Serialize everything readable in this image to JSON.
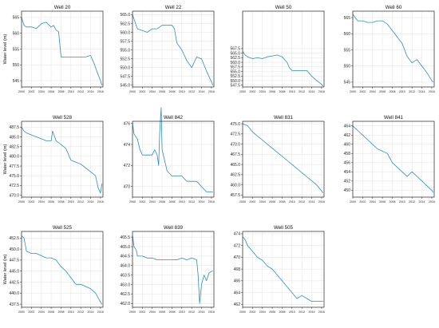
{
  "shared": {
    "x_tick_labels": [
      "2000",
      "2002",
      "2004",
      "2006",
      "2008",
      "2010",
      "2012",
      "2014",
      "2016"
    ],
    "ylabel": "Water level (m)",
    "line_color": "#2a8fbd",
    "grid": true
  },
  "chart_data": [
    {
      "type": "line",
      "title": "Well 20",
      "xlim": [
        2000,
        2016.5
      ],
      "ylim": [
        543,
        567
      ],
      "yticks": [
        545,
        550,
        555,
        560,
        565
      ],
      "x": [
        2000,
        2000.5,
        2001,
        2002,
        2003,
        2004,
        2005,
        2006,
        2006.5,
        2007,
        2007.5,
        2008,
        2009,
        2010,
        2011,
        2012,
        2013,
        2014,
        2014.8,
        2015.5,
        2016,
        2016.3
      ],
      "y": [
        565,
        562.5,
        562,
        562,
        561.5,
        563,
        563.5,
        562,
        562.5,
        561,
        560.5,
        552.5,
        552.5,
        552.5,
        552.5,
        552.5,
        552.5,
        553,
        550,
        547,
        545,
        543.5
      ]
    },
    {
      "type": "line",
      "title": "Well 22",
      "xlim": [
        2000,
        2016.5
      ],
      "ylim": [
        544.5,
        566
      ],
      "yticks": [
        545.0,
        547.5,
        550.0,
        552.5,
        555.0,
        557.5,
        560.0,
        562.5,
        565.0
      ],
      "x": [
        2000,
        2000.5,
        2001,
        2002,
        2003,
        2004,
        2005,
        2006,
        2007,
        2008,
        2008.5,
        2009,
        2010,
        2011,
        2012,
        2013,
        2014,
        2015,
        2016,
        2016.3
      ],
      "y": [
        565,
        563,
        561,
        560.5,
        560,
        561,
        561,
        562,
        562,
        562,
        561,
        557,
        555,
        552,
        550,
        553,
        552.5,
        549,
        546,
        545
      ]
    },
    {
      "type": "line",
      "title": "Well 50",
      "xlim": [
        2000,
        2016.5
      ],
      "ylim": [
        546.5,
        588
      ],
      "yticks": [
        547.5,
        550.0,
        552.5,
        555.0,
        557.5,
        560.0,
        562.5,
        565.0,
        567.5
      ],
      "x": [
        2000,
        2000.5,
        2001,
        2002,
        2003,
        2004,
        2005,
        2006,
        2007,
        2008,
        2009,
        2009.5,
        2010,
        2011,
        2012,
        2013,
        2014,
        2015,
        2016,
        2016.3
      ],
      "y": [
        566,
        564,
        563,
        562,
        562.5,
        562,
        563,
        563.5,
        564,
        563,
        560,
        557,
        555.5,
        555.5,
        555.5,
        555.5,
        552.5,
        550,
        548,
        547
      ]
    },
    {
      "type": "line",
      "title": "Well 60",
      "xlim": [
        2000,
        2016.5
      ],
      "ylim": [
        543.5,
        567
      ],
      "yticks": [
        545,
        550,
        555,
        560,
        565
      ],
      "x": [
        2000,
        2000.5,
        2001,
        2002,
        2003,
        2004,
        2005,
        2006,
        2007,
        2008,
        2009,
        2010,
        2011,
        2012,
        2013,
        2014,
        2015,
        2016,
        2016.3
      ],
      "y": [
        566,
        565,
        564,
        564,
        563.5,
        563.5,
        564,
        564,
        563,
        561,
        559,
        557,
        553,
        551,
        552,
        550,
        548,
        545.5,
        545
      ]
    },
    {
      "type": "line",
      "title": "Well 528",
      "xlim": [
        2000,
        2016.5
      ],
      "ylim": [
        469.5,
        489
      ],
      "yticks": [
        470.0,
        472.5,
        475.0,
        477.5,
        480.0,
        482.5,
        485.0,
        487.5
      ],
      "x": [
        2000,
        2000.5,
        2001,
        2002,
        2003,
        2004,
        2005,
        2006,
        2006.3,
        2007,
        2008,
        2009,
        2010,
        2011,
        2012,
        2013,
        2014,
        2015,
        2015.5,
        2016,
        2016.3
      ],
      "y": [
        487.5,
        486.5,
        486,
        485.5,
        485,
        484.5,
        484,
        484,
        486.5,
        484,
        483,
        482,
        479,
        478.5,
        478,
        477,
        476,
        475,
        472,
        470.5,
        473
      ]
    },
    {
      "type": "line",
      "title": "Well 842",
      "xlim": [
        2000,
        2016.5
      ],
      "ylim": [
        469,
        476.2
      ],
      "yticks": [
        470,
        472,
        474,
        476
      ],
      "x": [
        2000,
        2000.3,
        2001,
        2001.5,
        2002,
        2003,
        2004,
        2004.5,
        2005,
        2005.3,
        2005.5,
        2005.8,
        2006,
        2007,
        2008,
        2009,
        2010,
        2011,
        2012,
        2013,
        2014,
        2015,
        2016,
        2016.3
      ],
      "y": [
        476,
        475,
        474.5,
        473.5,
        473,
        473,
        473,
        473.5,
        473,
        472,
        475,
        477.5,
        473.5,
        471.5,
        471,
        471,
        471,
        470.5,
        470.5,
        470.5,
        470,
        469.5,
        469.5,
        469.5
      ]
    },
    {
      "type": "line",
      "title": "Well 831",
      "xlim": [
        2000,
        2016.5
      ],
      "ylim": [
        457,
        475.6
      ],
      "yticks": [
        457.5,
        460.0,
        462.5,
        465.0,
        467.5,
        470.0,
        472.5,
        475.0
      ],
      "x": [
        2000,
        2001,
        2002,
        2003,
        2004,
        2005,
        2006,
        2007,
        2008,
        2009,
        2010,
        2011,
        2012,
        2013,
        2014,
        2015,
        2016,
        2016.3
      ],
      "y": [
        475,
        474.5,
        473,
        472,
        471,
        470,
        469,
        468,
        467,
        466,
        465,
        464,
        463,
        462,
        461,
        460,
        458.5,
        458
      ]
    },
    {
      "type": "line",
      "title": "Well 841",
      "xlim": [
        2000,
        2016.5
      ],
      "ylim": [
        448.5,
        465
      ],
      "yticks": [
        450,
        452,
        454,
        456,
        458,
        460,
        462,
        464
      ],
      "x": [
        2000,
        2001,
        2002,
        2003,
        2004,
        2005,
        2006,
        2007,
        2008,
        2009,
        2010,
        2011,
        2012,
        2013,
        2014,
        2015,
        2016,
        2016.3
      ],
      "y": [
        464,
        463,
        462,
        461,
        460,
        459,
        458.5,
        458,
        456,
        455,
        454,
        453,
        454,
        453,
        452,
        451,
        450,
        449.5
      ]
    },
    {
      "type": "line",
      "title": "Well 525",
      "xlim": [
        2000,
        2016.5
      ],
      "ylim": [
        436.8,
        454
      ],
      "yticks": [
        437.5,
        440.0,
        442.5,
        445.0,
        447.5,
        450.0,
        452.5
      ],
      "x": [
        2000,
        2000.5,
        2001,
        2002,
        2003,
        2004,
        2005,
        2006,
        2007,
        2008,
        2009,
        2010,
        2011,
        2012,
        2013,
        2014,
        2015,
        2016,
        2016.3
      ],
      "y": [
        453,
        452.5,
        449.5,
        449,
        449,
        448.5,
        448,
        448,
        447.5,
        446,
        445,
        443.5,
        442,
        442,
        441.5,
        441,
        440,
        438,
        437.5
      ]
    },
    {
      "type": "line",
      "title": "Well 839",
      "xlim": [
        2000,
        2016.5
      ],
      "ylim": [
        461.8,
        465.8
      ],
      "yticks": [
        462.0,
        462.5,
        463.0,
        463.5,
        464.0,
        464.5,
        465.0,
        465.5
      ],
      "x": [
        2000,
        2000.3,
        2000.8,
        2001,
        2002,
        2003,
        2004,
        2005,
        2006,
        2007,
        2008,
        2009,
        2010,
        2011,
        2012,
        2013,
        2013.3,
        2013.6,
        2014,
        2014.5,
        2015,
        2015.5,
        2016,
        2016.3
      ],
      "y": [
        465.6,
        465,
        464.8,
        464.5,
        464.5,
        464.4,
        464.4,
        464.3,
        464.3,
        464.3,
        464.3,
        464.3,
        464.4,
        464.3,
        464.4,
        464.3,
        463.5,
        462,
        463,
        463.5,
        463.2,
        463.6,
        463.7,
        463.7
      ]
    },
    {
      "type": "line",
      "title": "Well 505",
      "xlim": [
        2000,
        2016.5
      ],
      "ylim": [
        461.5,
        474.4
      ],
      "yticks": [
        462,
        464,
        466,
        468,
        470,
        472,
        474
      ],
      "x": [
        2000,
        2000.5,
        2001,
        2002,
        2003,
        2004,
        2005,
        2006,
        2007,
        2008,
        2009,
        2010,
        2011,
        2012,
        2013,
        2014,
        2015,
        2016,
        2016.3
      ],
      "y": [
        473.5,
        473,
        472,
        471,
        470,
        469.5,
        468.5,
        468,
        467,
        466,
        465,
        464,
        463,
        463.5,
        463,
        462.5,
        462.5,
        462.5,
        462.5
      ]
    }
  ]
}
